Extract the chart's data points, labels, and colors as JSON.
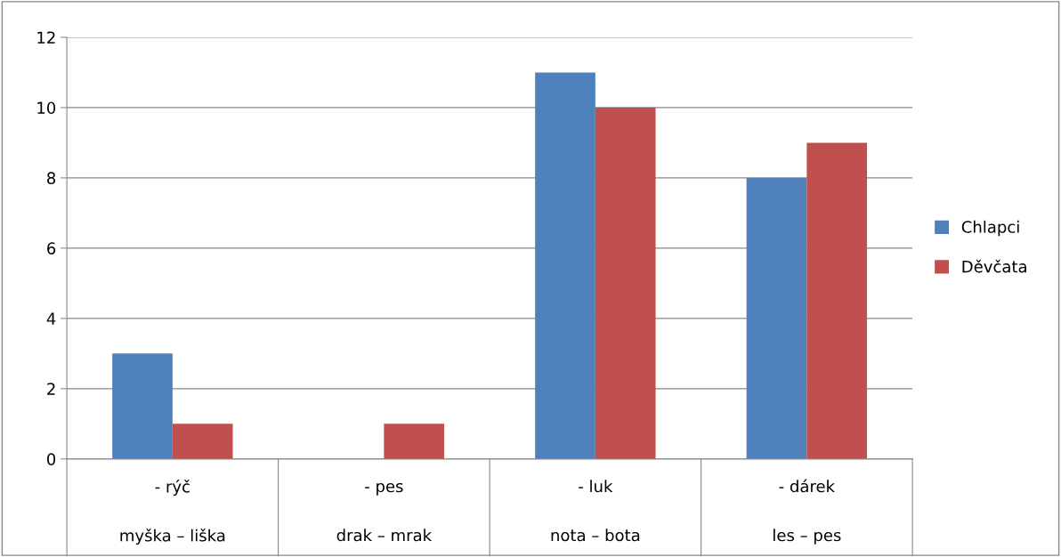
{
  "chart_data": {
    "type": "bar",
    "categories": [
      "- rýč\nmyška – liška",
      "- pes\ndrak – mrak",
      "- luk\nnota – bota",
      "- dárek\nles – pes"
    ],
    "series": [
      {
        "name": "Chlapci",
        "color": "#4f81bd",
        "values": [
          3,
          0,
          11,
          8
        ]
      },
      {
        "name": "Děvčata",
        "color": "#c0504d",
        "values": [
          1,
          1,
          10,
          9
        ]
      }
    ],
    "ylim": [
      0,
      12
    ],
    "yticks": [
      0,
      2,
      4,
      6,
      8,
      10,
      12
    ],
    "grid": "y",
    "legend": "right"
  }
}
